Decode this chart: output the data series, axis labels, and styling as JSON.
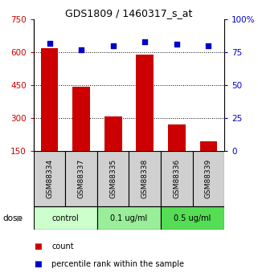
{
  "title": "GDS1809 / 1460317_s_at",
  "samples": [
    "GSM88334",
    "GSM88337",
    "GSM88335",
    "GSM88338",
    "GSM88336",
    "GSM88339"
  ],
  "bar_values": [
    620,
    443,
    308,
    590,
    270,
    195
  ],
  "bar_bottom": 150,
  "bar_color": "#cc0000",
  "dot_values": [
    82,
    77,
    80,
    83,
    81,
    80
  ],
  "dot_color": "#0000cc",
  "left_ylim": [
    150,
    750
  ],
  "right_ylim": [
    0,
    100
  ],
  "left_yticks": [
    150,
    300,
    450,
    600,
    750
  ],
  "right_yticks": [
    0,
    25,
    50,
    75,
    100
  ],
  "right_yticklabels": [
    "0",
    "25",
    "50",
    "75",
    "100%"
  ],
  "hlines": [
    300,
    450,
    600
  ],
  "dose_groups": [
    {
      "label": "control",
      "span": [
        0,
        2
      ],
      "color": "#ccffcc"
    },
    {
      "label": "0.1 ug/ml",
      "span": [
        2,
        4
      ],
      "color": "#99ee99"
    },
    {
      "label": "0.5 ug/ml",
      "span": [
        4,
        6
      ],
      "color": "#55dd55"
    }
  ],
  "dose_label": "dose",
  "legend_items": [
    {
      "label": "count",
      "color": "#cc0000"
    },
    {
      "label": "percentile rank within the sample",
      "color": "#0000cc"
    }
  ],
  "left_tick_color": "#cc0000",
  "right_tick_color": "#0000cc",
  "sample_box_color": "#d0d0d0"
}
